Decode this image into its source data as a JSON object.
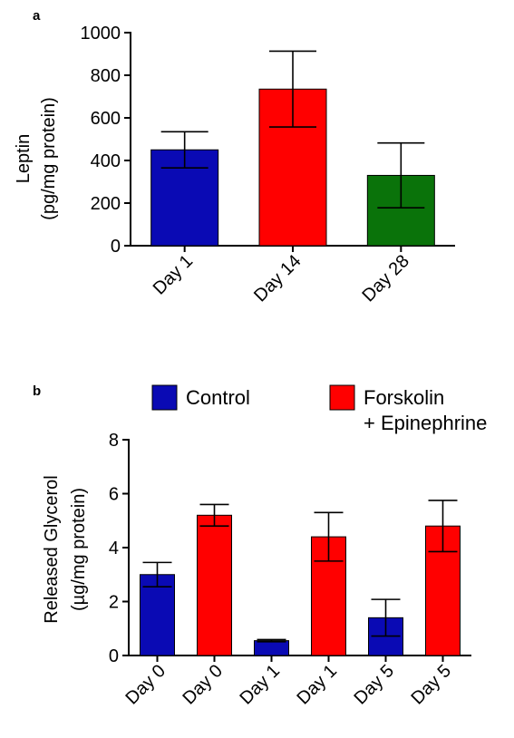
{
  "chart_data": [
    {
      "panel": "a",
      "type": "bar",
      "ylabel_lines": [
        "Leptin",
        "(pg/mg protein)"
      ],
      "ylim": [
        0,
        1000
      ],
      "yticks": [
        "0",
        "200",
        "400",
        "600",
        "800",
        "1000"
      ],
      "ytick_values": [
        0,
        200,
        400,
        600,
        800,
        1000
      ],
      "categories": [
        "Day 1",
        "Day 14",
        "Day 28"
      ],
      "values": [
        450,
        735,
        330
      ],
      "errors": [
        85,
        178,
        152
      ],
      "colors": [
        "#0a0ab4",
        "#ff0000",
        "#0a730a"
      ]
    },
    {
      "panel": "b",
      "type": "bar",
      "ylabel_lines": [
        "Released Glycerol",
        "(µg/mg protein)"
      ],
      "ylim": [
        0,
        8
      ],
      "yticks": [
        "0",
        "2",
        "4",
        "6",
        "8"
      ],
      "ytick_values": [
        0,
        2,
        4,
        6,
        8
      ],
      "categories": [
        "Day 0",
        "Day 0",
        "Day 1",
        "Day 1",
        "Day 5",
        "Day 5"
      ],
      "values": [
        3.0,
        5.2,
        0.55,
        4.4,
        1.4,
        4.8
      ],
      "errors": [
        0.45,
        0.4,
        0.04,
        0.9,
        0.68,
        0.95
      ],
      "colors": [
        "#0a0ab4",
        "#ff0000",
        "#0a0ab4",
        "#ff0000",
        "#0a0ab4",
        "#ff0000"
      ],
      "legend": [
        {
          "lines": [
            "Control"
          ],
          "color": "#0a0ab4"
        },
        {
          "lines": [
            "Forskolin",
            "+ Epinephrine"
          ],
          "color": "#ff0000"
        }
      ]
    }
  ]
}
